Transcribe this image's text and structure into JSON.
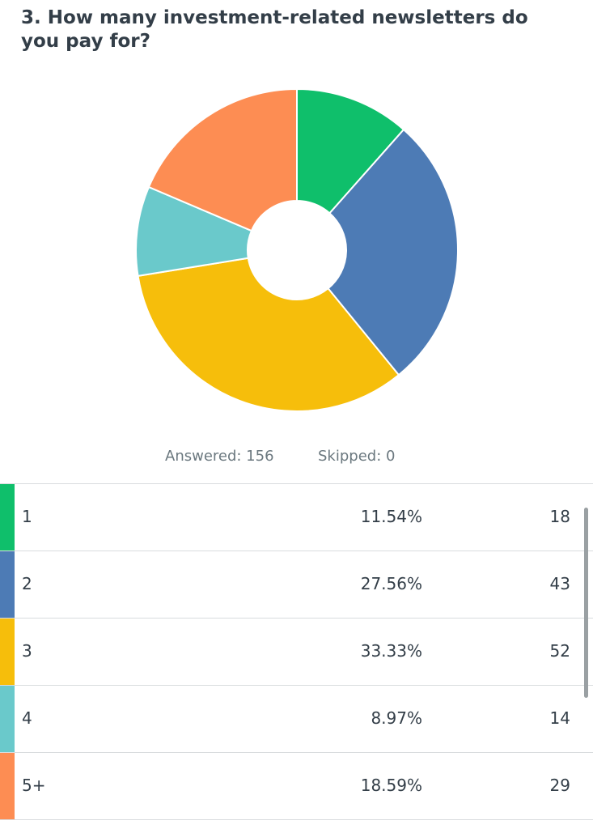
{
  "question": {
    "title": "3. How many investment-related newsletters do you pay for?"
  },
  "stats": {
    "answered_label": "Answered: 156",
    "skipped_label": "Skipped: 0"
  },
  "colors": {
    "green": "#0fbf6b",
    "blue": "#4d7bb5",
    "yellow": "#f6be0b",
    "teal": "#6ac9cb",
    "orange": "#fd8d53"
  },
  "chart_data": {
    "type": "pie",
    "donut": true,
    "categories": [
      "1",
      "2",
      "3",
      "4",
      "5+"
    ],
    "values": [
      11.54,
      27.56,
      33.33,
      8.97,
      18.59
    ],
    "counts": [
      18,
      43,
      52,
      14,
      29
    ],
    "colors": [
      "#0fbf6b",
      "#4d7bb5",
      "#f6be0b",
      "#6ac9cb",
      "#fd8d53"
    ],
    "title": "",
    "legend": "none"
  },
  "table": {
    "rows": [
      {
        "label": "1",
        "percent": "11.54%",
        "count": "18",
        "color": "#0fbf6b"
      },
      {
        "label": "2",
        "percent": "27.56%",
        "count": "43",
        "color": "#4d7bb5"
      },
      {
        "label": "3",
        "percent": "33.33%",
        "count": "52",
        "color": "#f6be0b"
      },
      {
        "label": "4",
        "percent": "8.97%",
        "count": "14",
        "color": "#6ac9cb"
      },
      {
        "label": "5+",
        "percent": "18.59%",
        "count": "29",
        "color": "#fd8d53"
      }
    ]
  }
}
